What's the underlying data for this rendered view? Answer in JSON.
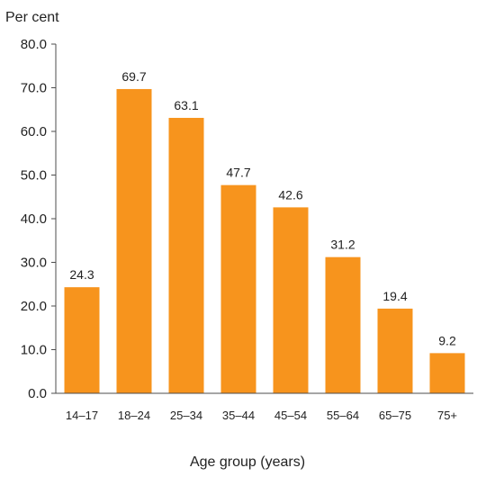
{
  "chart_data": {
    "type": "bar",
    "title": "",
    "ylabel": "Per cent",
    "xlabel": "Age group (years)",
    "categories": [
      "14–17",
      "18–24",
      "25–34",
      "35–44",
      "45–54",
      "55–64",
      "65–75",
      "75+"
    ],
    "values": [
      24.3,
      69.7,
      63.1,
      47.7,
      42.6,
      31.2,
      19.4,
      9.2
    ],
    "value_labels": [
      "24.3",
      "69.7",
      "63.1",
      "47.7",
      "42.6",
      "31.2",
      "19.4",
      "9.2"
    ],
    "yticks": [
      "0.0",
      "10.0",
      "20.0",
      "30.0",
      "40.0",
      "50.0",
      "60.0",
      "70.0",
      "80.0"
    ],
    "ylim": [
      0,
      80
    ],
    "grid": false,
    "legend": "none",
    "colors": {
      "bar": "#F7941D",
      "axis": "#4d4d4d",
      "text": "#222222"
    }
  }
}
